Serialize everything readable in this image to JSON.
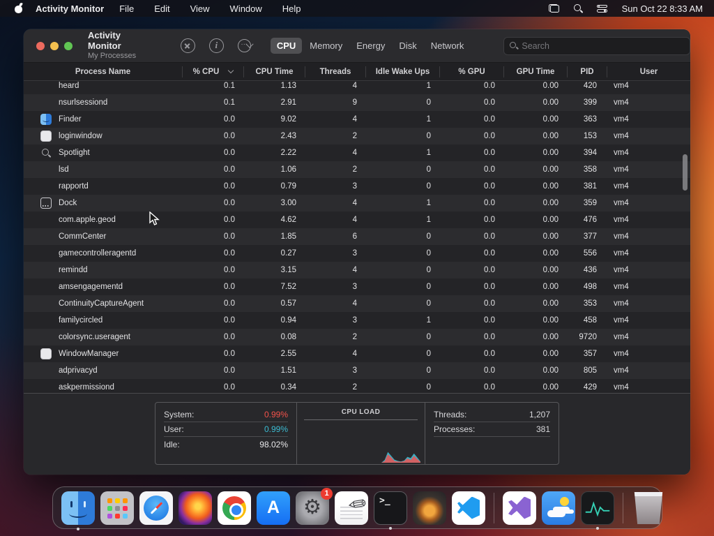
{
  "menu_bar": {
    "app_name": "Activity Monitor",
    "menus": [
      "File",
      "Edit",
      "View",
      "Window",
      "Help"
    ],
    "clock": "Sun Oct 22  8:33 AM"
  },
  "window": {
    "title": "Activity Monitor",
    "subtitle": "My Processes",
    "tabs": [
      {
        "label": "CPU",
        "selected": true
      },
      {
        "label": "Memory",
        "selected": false
      },
      {
        "label": "Energy",
        "selected": false
      },
      {
        "label": "Disk",
        "selected": false
      },
      {
        "label": "Network",
        "selected": false
      }
    ],
    "search_placeholder": "Search"
  },
  "table": {
    "columns": [
      "Process Name",
      "% CPU",
      "CPU Time",
      "Threads",
      "Idle Wake Ups",
      "% GPU",
      "GPU Time",
      "PID",
      "User"
    ],
    "sort_column": "% CPU",
    "rows": [
      {
        "icon": null,
        "name": "heard",
        "cpu": "0.1",
        "cpu_time": "1.13",
        "threads": "4",
        "idle_wake_ups": "1",
        "gpu": "0.0",
        "gpu_time": "0.00",
        "pid": "420",
        "user": "vm4"
      },
      {
        "icon": null,
        "name": "nsurlsessiond",
        "cpu": "0.1",
        "cpu_time": "2.91",
        "threads": "9",
        "idle_wake_ups": "0",
        "gpu": "0.0",
        "gpu_time": "0.00",
        "pid": "399",
        "user": "vm4"
      },
      {
        "icon": "finder-icon",
        "name": "Finder",
        "cpu": "0.0",
        "cpu_time": "9.02",
        "threads": "4",
        "idle_wake_ups": "1",
        "gpu": "0.0",
        "gpu_time": "0.00",
        "pid": "363",
        "user": "vm4"
      },
      {
        "icon": "app-window-icon",
        "name": "loginwindow",
        "cpu": "0.0",
        "cpu_time": "2.43",
        "threads": "2",
        "idle_wake_ups": "0",
        "gpu": "0.0",
        "gpu_time": "0.00",
        "pid": "153",
        "user": "vm4"
      },
      {
        "icon": "spotlight-icon",
        "name": "Spotlight",
        "cpu": "0.0",
        "cpu_time": "2.22",
        "threads": "4",
        "idle_wake_ups": "1",
        "gpu": "0.0",
        "gpu_time": "0.00",
        "pid": "394",
        "user": "vm4"
      },
      {
        "icon": null,
        "name": "lsd",
        "cpu": "0.0",
        "cpu_time": "1.06",
        "threads": "2",
        "idle_wake_ups": "0",
        "gpu": "0.0",
        "gpu_time": "0.00",
        "pid": "358",
        "user": "vm4"
      },
      {
        "icon": null,
        "name": "rapportd",
        "cpu": "0.0",
        "cpu_time": "0.79",
        "threads": "3",
        "idle_wake_ups": "0",
        "gpu": "0.0",
        "gpu_time": "0.00",
        "pid": "381",
        "user": "vm4"
      },
      {
        "icon": "dock-icon",
        "name": "Dock",
        "cpu": "0.0",
        "cpu_time": "3.00",
        "threads": "4",
        "idle_wake_ups": "1",
        "gpu": "0.0",
        "gpu_time": "0.00",
        "pid": "359",
        "user": "vm4"
      },
      {
        "icon": null,
        "name": "com.apple.geod",
        "cpu": "0.0",
        "cpu_time": "4.62",
        "threads": "4",
        "idle_wake_ups": "1",
        "gpu": "0.0",
        "gpu_time": "0.00",
        "pid": "476",
        "user": "vm4"
      },
      {
        "icon": null,
        "name": "CommCenter",
        "cpu": "0.0",
        "cpu_time": "1.85",
        "threads": "6",
        "idle_wake_ups": "0",
        "gpu": "0.0",
        "gpu_time": "0.00",
        "pid": "377",
        "user": "vm4"
      },
      {
        "icon": null,
        "name": "gamecontrolleragentd",
        "cpu": "0.0",
        "cpu_time": "0.27",
        "threads": "3",
        "idle_wake_ups": "0",
        "gpu": "0.0",
        "gpu_time": "0.00",
        "pid": "556",
        "user": "vm4"
      },
      {
        "icon": null,
        "name": "remindd",
        "cpu": "0.0",
        "cpu_time": "3.15",
        "threads": "4",
        "idle_wake_ups": "0",
        "gpu": "0.0",
        "gpu_time": "0.00",
        "pid": "436",
        "user": "vm4"
      },
      {
        "icon": null,
        "name": "amsengagementd",
        "cpu": "0.0",
        "cpu_time": "7.52",
        "threads": "3",
        "idle_wake_ups": "0",
        "gpu": "0.0",
        "gpu_time": "0.00",
        "pid": "498",
        "user": "vm4"
      },
      {
        "icon": null,
        "name": "ContinuityCaptureAgent",
        "cpu": "0.0",
        "cpu_time": "0.57",
        "threads": "4",
        "idle_wake_ups": "0",
        "gpu": "0.0",
        "gpu_time": "0.00",
        "pid": "353",
        "user": "vm4"
      },
      {
        "icon": null,
        "name": "familycircled",
        "cpu": "0.0",
        "cpu_time": "0.94",
        "threads": "3",
        "idle_wake_ups": "1",
        "gpu": "0.0",
        "gpu_time": "0.00",
        "pid": "458",
        "user": "vm4"
      },
      {
        "icon": null,
        "name": "colorsync.useragent",
        "cpu": "0.0",
        "cpu_time": "0.08",
        "threads": "2",
        "idle_wake_ups": "0",
        "gpu": "0.0",
        "gpu_time": "0.00",
        "pid": "9720",
        "user": "vm4"
      },
      {
        "icon": "app-window-icon",
        "name": "WindowManager",
        "cpu": "0.0",
        "cpu_time": "2.55",
        "threads": "4",
        "idle_wake_ups": "0",
        "gpu": "0.0",
        "gpu_time": "0.00",
        "pid": "357",
        "user": "vm4"
      },
      {
        "icon": null,
        "name": "adprivacyd",
        "cpu": "0.0",
        "cpu_time": "1.51",
        "threads": "3",
        "idle_wake_ups": "0",
        "gpu": "0.0",
        "gpu_time": "0.00",
        "pid": "805",
        "user": "vm4"
      },
      {
        "icon": null,
        "name": "askpermissiond",
        "cpu": "0.0",
        "cpu_time": "0.34",
        "threads": "2",
        "idle_wake_ups": "0",
        "gpu": "0.0",
        "gpu_time": "0.00",
        "pid": "429",
        "user": "vm4"
      }
    ]
  },
  "footer": {
    "system_label": "System:",
    "system_value": "0.99%",
    "user_label": "User:",
    "user_value": "0.99%",
    "idle_label": "Idle:",
    "idle_value": "98.02%",
    "cpu_load_title": "CPU LOAD",
    "threads_label": "Threads:",
    "threads_value": "1,207",
    "processes_label": "Processes:",
    "processes_value": "381"
  },
  "chart_data": {
    "type": "area",
    "title": "CPU LOAD",
    "xlabel": "time",
    "ylabel": "% of graph height",
    "ylim": [
      0,
      100
    ],
    "legend_position": "none",
    "grid": false,
    "series": [
      {
        "name": "user",
        "color": "#3cbcd3",
        "values": [
          0,
          18,
          70,
          45,
          20,
          12,
          8,
          14,
          38,
          30,
          60,
          35,
          8
        ]
      },
      {
        "name": "system",
        "color": "#e25a5a",
        "values": [
          0,
          10,
          55,
          35,
          12,
          8,
          6,
          10,
          28,
          18,
          45,
          25,
          5
        ]
      }
    ]
  },
  "colors": {
    "accent_red": "#f4524a",
    "accent_teal": "#3cbcd3",
    "badge_red": "#ec3b30",
    "selected_tab_bg": "#505053",
    "window_bg": "#242427"
  },
  "dock": {
    "items": [
      {
        "type": "finder",
        "name": "finder-dock-icon",
        "running": true
      },
      {
        "type": "launchpad",
        "name": "launchpad-dock-icon"
      },
      {
        "type": "safari",
        "name": "safari-dock-icon"
      },
      {
        "type": "firefox",
        "name": "firefox-dock-icon"
      },
      {
        "type": "chrome",
        "name": "chrome-dock-icon"
      },
      {
        "type": "appstore",
        "name": "app-store-dock-icon"
      },
      {
        "type": "settings",
        "name": "system-settings-dock-icon",
        "badge": "1"
      },
      {
        "type": "textedit",
        "name": "textedit-dock-icon"
      },
      {
        "type": "terminal",
        "name": "terminal-dock-icon",
        "running": true
      },
      {
        "type": "garageband",
        "name": "garageband-dock-icon"
      },
      {
        "type": "vscode",
        "name": "vscode-dock-icon"
      },
      {
        "type": "divider"
      },
      {
        "type": "visualstudio",
        "name": "visual-studio-dock-icon"
      },
      {
        "type": "weather",
        "name": "weather-dock-icon"
      },
      {
        "type": "activitymonitor",
        "name": "activity-monitor-dock-icon",
        "running": true
      },
      {
        "type": "divider"
      },
      {
        "type": "trash",
        "name": "trash-dock-icon"
      }
    ]
  }
}
